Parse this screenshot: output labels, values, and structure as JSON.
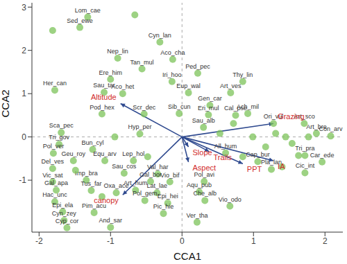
{
  "chart_data": {
    "type": "scatter",
    "x_label": "CCA1",
    "y_label": "CCA2",
    "xlim": [
      -2.1,
      2.25
    ],
    "ylim": [
      -2.2,
      3.1
    ],
    "xticks": [
      -2,
      -1,
      0,
      1,
      2
    ],
    "yticks": [
      -1,
      0,
      1,
      2,
      3
    ],
    "grid": false,
    "color": "#7cc35a",
    "marker": "circle",
    "points": [
      {
        "label": "Lom_cae",
        "x": -1.32,
        "y": 2.77
      },
      {
        "label": "Sed_ewe",
        "x": -1.43,
        "y": 2.53
      },
      {
        "label": "Cyn_lan",
        "x": -0.31,
        "y": 2.19
      },
      {
        "label": "Nep_lin",
        "x": -0.9,
        "y": 1.82
      },
      {
        "label": "Aco_cha",
        "x": -0.13,
        "y": 1.79
      },
      {
        "label": "Tan_mul",
        "x": -0.56,
        "y": 1.57
      },
      {
        "label": "Ped_pec",
        "x": 0.22,
        "y": 1.47
      },
      {
        "label": "Ere_him",
        "x": -1.0,
        "y": 1.33
      },
      {
        "label": "Iri_hoo",
        "x": -0.14,
        "y": 1.28
      },
      {
        "label": "Thy_lin",
        "x": 0.85,
        "y": 1.28
      },
      {
        "label": "Her_can",
        "x": -1.78,
        "y": 1.08
      },
      {
        "label": "Sau_tar",
        "x": -1.09,
        "y": 1.03
      },
      {
        "label": "Aco_het",
        "x": -0.83,
        "y": 1.0
      },
      {
        "label": "Eup_wal",
        "x": 0.09,
        "y": 1.02
      },
      {
        "label": "Art_ves",
        "x": 0.68,
        "y": 1.02
      },
      {
        "label": "Gen_car",
        "x": 0.39,
        "y": 0.73
      },
      {
        "label": "Ach_mil",
        "x": 0.92,
        "y": 0.54
      },
      {
        "label": "Pod_hex",
        "x": -1.12,
        "y": 0.53
      },
      {
        "label": "Scr_dec",
        "x": -0.53,
        "y": 0.53
      },
      {
        "label": "Sib_cun",
        "x": -0.04,
        "y": 0.54
      },
      {
        "label": "Eri_mul",
        "x": 0.37,
        "y": 0.51
      },
      {
        "label": "Cal_pse",
        "x": 0.75,
        "y": 0.5
      },
      {
        "label": "Ori_vul",
        "x": 1.28,
        "y": 0.31
      },
      {
        "label": "Art_sco",
        "x": 1.71,
        "y": 0.31
      },
      {
        "label": "Art_bre",
        "x": 1.88,
        "y": 0.08
      },
      {
        "label": "Con_arv",
        "x": 2.08,
        "y": 0.02
      },
      {
        "label": "Sca_pec",
        "x": -1.69,
        "y": 0.1
      },
      {
        "label": "Hyp_per",
        "x": -0.59,
        "y": 0.07
      },
      {
        "label": "Sau_alb",
        "x": 0.3,
        "y": 0.22
      },
      {
        "label": "Tri_gov",
        "x": -1.72,
        "y": -0.17
      },
      {
        "label": "Bun_cyl",
        "x": -1.25,
        "y": -0.29
      },
      {
        "label": "Pol_ver",
        "x": -1.8,
        "y": -0.38
      },
      {
        "label": "Geu_roy",
        "x": -1.52,
        "y": -0.55
      },
      {
        "label": "Equ_arv",
        "x": -1.08,
        "y": -0.55
      },
      {
        "label": "Lep_hol",
        "x": -0.68,
        "y": -0.55
      },
      {
        "label": "All_hum",
        "x": 0.61,
        "y": -0.37
      },
      {
        "label": "Cap_bur",
        "x": 1.06,
        "y": -0.57
      },
      {
        "label": "Pla_lan",
        "x": 1.25,
        "y": -0.75
      },
      {
        "label": "Tri_pra",
        "x": 1.72,
        "y": -0.43
      },
      {
        "label": "Car_ede",
        "x": 1.96,
        "y": -0.58
      },
      {
        "label": "Cic_int",
        "x": 1.72,
        "y": -0.83
      },
      {
        "label": "Del_ves",
        "x": -1.81,
        "y": -0.73
      },
      {
        "label": "Vic_sat",
        "x": -1.81,
        "y": -1.04
      },
      {
        "label": "Imp_bra",
        "x": -1.34,
        "y": -1.0
      },
      {
        "label": "Sau_cos",
        "x": -0.81,
        "y": -0.84
      },
      {
        "label": "Val_har",
        "x": -0.34,
        "y": -0.86
      },
      {
        "label": "Gal_bor",
        "x": -0.44,
        "y": -1.03
      },
      {
        "label": "Vio_bif",
        "x": -0.17,
        "y": -1.04
      },
      {
        "label": "Pol_avi",
        "x": 0.31,
        "y": -1.03
      },
      {
        "label": "Gal_apa",
        "x": -1.76,
        "y": -1.23
      },
      {
        "label": "Tus_far",
        "x": -1.27,
        "y": -1.24
      },
      {
        "label": "Oxa_ace",
        "x": -0.92,
        "y": -1.29
      },
      {
        "label": "Art_hum",
        "x": -0.65,
        "y": -1.23
      },
      {
        "label": "Lat_lae",
        "x": -0.35,
        "y": -1.29
      },
      {
        "label": "Aqu_pub",
        "x": 0.24,
        "y": -1.27
      },
      {
        "label": "Hac_unc",
        "x": -1.78,
        "y": -1.5
      },
      {
        "label": "Pol_gem",
        "x": -0.52,
        "y": -1.47
      },
      {
        "label": "Epi_hei",
        "x": -0.2,
        "y": -1.53
      },
      {
        "label": "Che_alb",
        "x": 0.32,
        "y": -1.47
      },
      {
        "label": "Vio_odo",
        "x": 0.67,
        "y": -1.6
      },
      {
        "label": "Epi_ela",
        "x": -1.67,
        "y": -1.73
      },
      {
        "label": "Pim_acu",
        "x": -1.23,
        "y": -1.75
      },
      {
        "label": "Pic_hie",
        "x": -0.26,
        "y": -1.77
      },
      {
        "label": "Ver_tha",
        "x": 0.21,
        "y": -1.97
      },
      {
        "label": "Cyn_zey",
        "x": -1.65,
        "y": -1.93
      },
      {
        "label": "Cyp_cor",
        "x": -1.61,
        "y": -2.1
      },
      {
        "label": "And_sar",
        "x": -1.0,
        "y": -2.09
      },
      {
        "label": null,
        "x": -0.66,
        "y": 2.82
      },
      {
        "label": null,
        "x": -1.81,
        "y": 2.46
      },
      {
        "label": null,
        "x": 1.31,
        "y": 0.08
      },
      {
        "label": null,
        "x": 1.45,
        "y": 0.0
      },
      {
        "label": null,
        "x": 1.54,
        "y": -0.15
      },
      {
        "label": null,
        "x": 1.17,
        "y": -0.23
      },
      {
        "label": null,
        "x": 1.63,
        "y": -0.43
      },
      {
        "label": null,
        "x": 1.4,
        "y": -0.69
      },
      {
        "label": null,
        "x": 0.99,
        "y": 0.0
      },
      {
        "label": null,
        "x": 0.85,
        "y": -0.46
      },
      {
        "label": null,
        "x": 1.77,
        "y": 0.0
      },
      {
        "label": null,
        "x": 0.53,
        "y": 0.08
      },
      {
        "label": null,
        "x": -0.48,
        "y": -0.46
      },
      {
        "label": null,
        "x": -0.94,
        "y": 0.0
      },
      {
        "label": null,
        "x": -1.49,
        "y": -0.77
      },
      {
        "label": null,
        "x": -1.12,
        "y": -1.38
      },
      {
        "label": null,
        "x": 0.72,
        "y": 0.31
      }
    ],
    "vectors": [
      {
        "label": "Altitude",
        "x": -0.86,
        "y": 0.77
      },
      {
        "label": "Grazing",
        "x": 1.28,
        "y": 0.31
      },
      {
        "label": "IA",
        "x": 1.28,
        "y": -0.55
      },
      {
        "label": "PPT",
        "x": 0.85,
        "y": -0.62
      },
      {
        "label": "Trails",
        "x": 0.38,
        "y": -0.34
      },
      {
        "label": "Slope",
        "x": 0.09,
        "y": -0.23
      },
      {
        "label": "Aspect",
        "x": 0.09,
        "y": -0.58
      },
      {
        "label": "canopy",
        "x": -0.83,
        "y": -1.34
      }
    ],
    "vector_color": "#2f4a8f",
    "vector_label_color": "#d12a2a"
  }
}
